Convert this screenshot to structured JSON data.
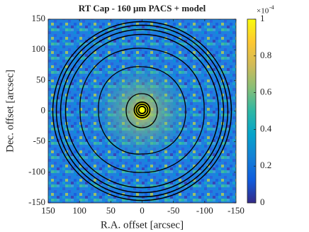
{
  "chart_data": {
    "type": "image",
    "title": "RT Cap - 160 μm PACS + model",
    "x_label": "R.A. offset [arcsec]",
    "y_label": "Dec. offset [arcsec]",
    "xlim": [
      150,
      -150
    ],
    "xticks": [
      150,
      100,
      50,
      0,
      -50,
      -100,
      -150
    ],
    "ylim": [
      -150,
      150
    ],
    "yticks": [
      -150,
      -100,
      -50,
      0,
      50,
      100,
      150
    ],
    "colorbar": {
      "clim": [
        0,
        1
      ],
      "ticks": [
        0,
        0.2,
        0.4,
        0.6,
        0.8,
        1
      ],
      "exponent_base": "×10",
      "exponent": "-4",
      "colors": [
        "#352a87",
        "#0f5cdd",
        "#1481d6",
        "#06a4ca",
        "#2eb7a4",
        "#87bf77",
        "#d1bb59",
        "#fec832",
        "#f9fb0e"
      ]
    }
  }
}
